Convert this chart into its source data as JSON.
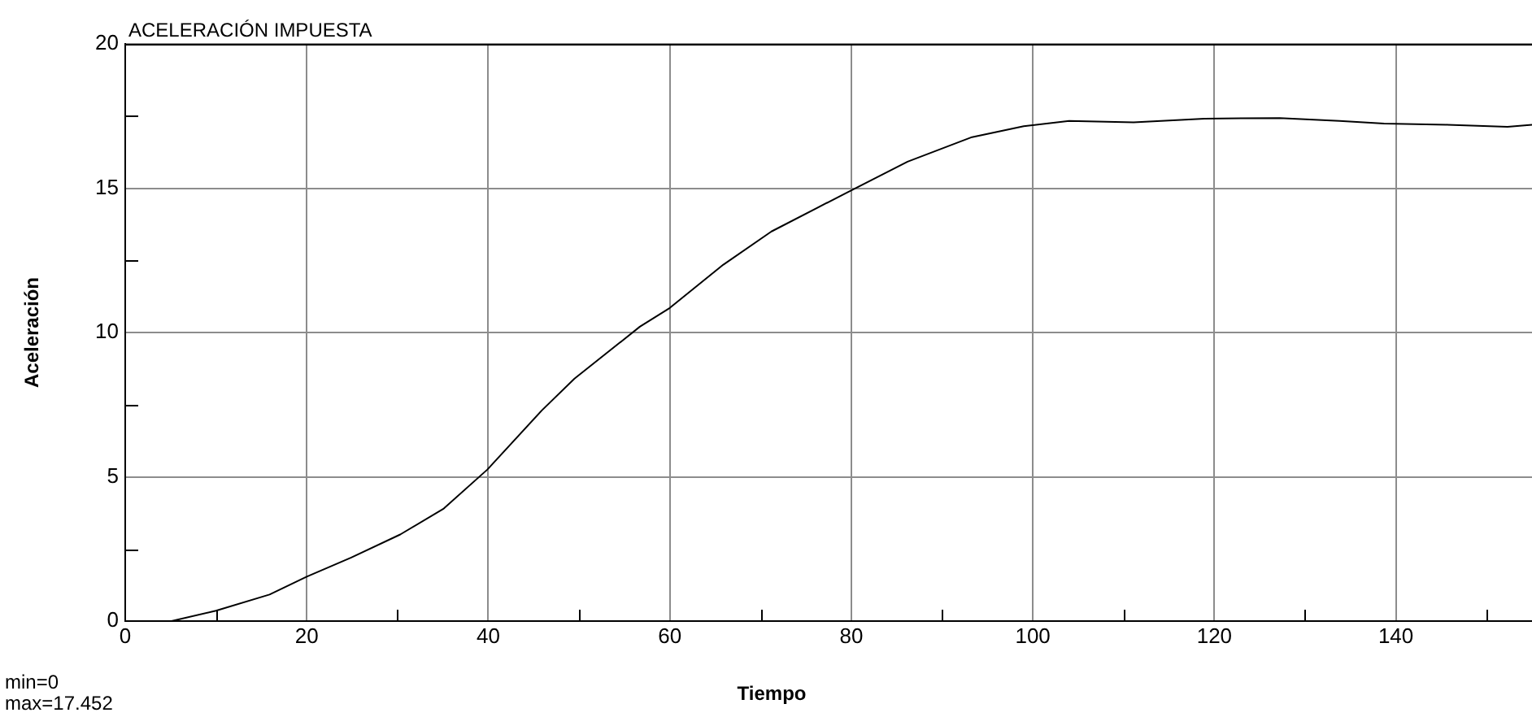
{
  "chart_data": {
    "type": "line",
    "title": "ACELERACIÓN IMPUESTA",
    "xlabel": "Tiempo",
    "ylabel": "Aceleración",
    "annotations": [
      "min=0",
      "max=17.452"
    ],
    "x": [
      5.1,
      10,
      15.9,
      20,
      24.9,
      30.3,
      35.1,
      39.9,
      45.9,
      49.5,
      56.7,
      60,
      65.9,
      71.2,
      79.4,
      86.2,
      93.3,
      99,
      104,
      111.1,
      118.9,
      127.2,
      133.8,
      138.7,
      145.7,
      152.3,
      155
    ],
    "series": [
      {
        "color": "#000000",
        "values": [
          0,
          0.36,
          0.92,
          1.54,
          2.2,
          3.0,
          3.9,
          5.25,
          7.3,
          8.4,
          10.2,
          10.85,
          12.35,
          13.5,
          14.83,
          15.92,
          16.77,
          17.15,
          17.33,
          17.28,
          17.41,
          17.43,
          17.33,
          17.24,
          17.2,
          17.13,
          17.2
        ]
      }
    ],
    "xlim": [
      0,
      155
    ],
    "xticks": [
      0,
      {
        "value": 10,
        "label": null
      },
      20,
      {
        "value": 30,
        "label": null
      },
      40,
      {
        "value": 50,
        "label": null
      },
      60,
      {
        "value": 70,
        "label": null
      },
      80,
      {
        "value": 90,
        "label": null
      },
      100,
      {
        "value": 110,
        "label": null
      },
      120,
      {
        "value": 130,
        "label": null
      },
      140,
      {
        "value": 150,
        "label": null
      }
    ],
    "ylim": [
      0,
      20
    ],
    "yticks": [
      0,
      {
        "value": 2.5,
        "label": null
      },
      5,
      {
        "value": 7.5,
        "label": null
      },
      10,
      {
        "value": 12.5,
        "label": null
      },
      15,
      {
        "value": 17.5,
        "label": null
      },
      20
    ],
    "grid": true,
    "legend": false,
    "marker": "none",
    "line_style": "solid"
  }
}
